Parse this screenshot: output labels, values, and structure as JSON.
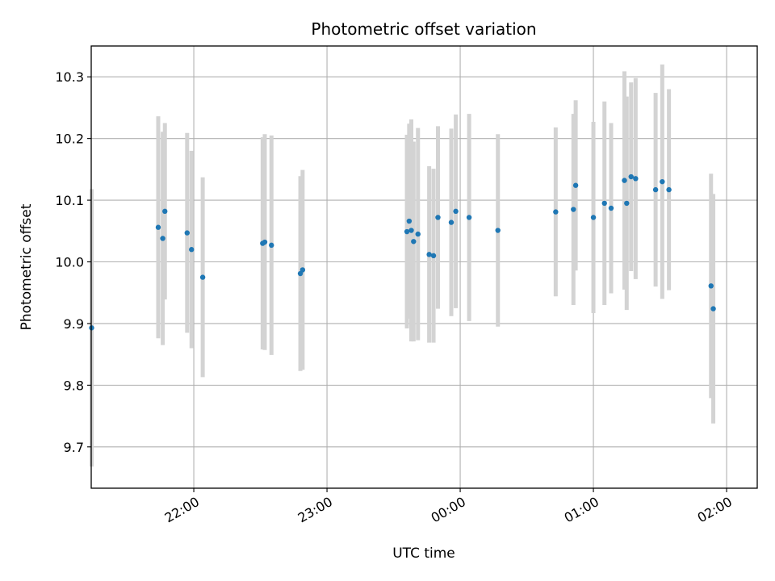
{
  "chart_data": {
    "type": "scatter",
    "title": "Photometric offset variation",
    "xlabel": "UTC time",
    "ylabel": "Photometric offset",
    "x_unit": "hours",
    "xlim": [
      21.23,
      26.23
    ],
    "ylim": [
      9.633,
      10.35
    ],
    "x_ticks": [
      {
        "value": 22,
        "label": "22:00"
      },
      {
        "value": 23,
        "label": "23:00"
      },
      {
        "value": 24,
        "label": "00:00"
      },
      {
        "value": 25,
        "label": "01:00"
      },
      {
        "value": 26,
        "label": "02:00"
      }
    ],
    "y_ticks": [
      {
        "value": 9.7,
        "label": "9.7"
      },
      {
        "value": 9.8,
        "label": "9.8"
      },
      {
        "value": 9.9,
        "label": "9.9"
      },
      {
        "value": 10.0,
        "label": "10.0"
      },
      {
        "value": 10.1,
        "label": "10.1"
      },
      {
        "value": 10.2,
        "label": "10.2"
      },
      {
        "value": 10.3,
        "label": "10.3"
      }
    ],
    "grid": true,
    "colors": {
      "point": "#1f77b4",
      "errorbar": "#d3d3d3",
      "grid": "#b0b0b0"
    },
    "points": [
      {
        "x": 21.233,
        "y": 9.893,
        "err": 0.225
      },
      {
        "x": 21.733,
        "y": 10.056,
        "err": 0.18
      },
      {
        "x": 21.767,
        "y": 10.038,
        "err": 0.173
      },
      {
        "x": 21.783,
        "y": 10.082,
        "err": 0.143
      },
      {
        "x": 21.95,
        "y": 10.047,
        "err": 0.162
      },
      {
        "x": 21.983,
        "y": 10.02,
        "err": 0.16
      },
      {
        "x": 22.067,
        "y": 9.975,
        "err": 0.162
      },
      {
        "x": 22.517,
        "y": 10.03,
        "err": 0.172
      },
      {
        "x": 22.533,
        "y": 10.032,
        "err": 0.175
      },
      {
        "x": 22.583,
        "y": 10.027,
        "err": 0.178
      },
      {
        "x": 22.8,
        "y": 9.981,
        "err": 0.158
      },
      {
        "x": 22.817,
        "y": 9.987,
        "err": 0.162
      },
      {
        "x": 23.6,
        "y": 10.049,
        "err": 0.157
      },
      {
        "x": 23.617,
        "y": 10.066,
        "err": 0.158
      },
      {
        "x": 23.633,
        "y": 10.051,
        "err": 0.18
      },
      {
        "x": 23.65,
        "y": 10.033,
        "err": 0.162
      },
      {
        "x": 23.683,
        "y": 10.045,
        "err": 0.172
      },
      {
        "x": 23.767,
        "y": 10.012,
        "err": 0.143
      },
      {
        "x": 23.8,
        "y": 10.01,
        "err": 0.141
      },
      {
        "x": 23.833,
        "y": 10.072,
        "err": 0.148
      },
      {
        "x": 23.933,
        "y": 10.064,
        "err": 0.152
      },
      {
        "x": 23.967,
        "y": 10.082,
        "err": 0.157
      },
      {
        "x": 24.067,
        "y": 10.072,
        "err": 0.168
      },
      {
        "x": 24.283,
        "y": 10.051,
        "err": 0.156
      },
      {
        "x": 24.717,
        "y": 10.081,
        "err": 0.137
      },
      {
        "x": 24.85,
        "y": 10.085,
        "err": 0.155
      },
      {
        "x": 24.867,
        "y": 10.124,
        "err": 0.138
      },
      {
        "x": 25.0,
        "y": 10.072,
        "err": 0.155
      },
      {
        "x": 25.083,
        "y": 10.095,
        "err": 0.165
      },
      {
        "x": 25.133,
        "y": 10.087,
        "err": 0.138
      },
      {
        "x": 25.233,
        "y": 10.132,
        "err": 0.177
      },
      {
        "x": 25.25,
        "y": 10.095,
        "err": 0.173
      },
      {
        "x": 25.283,
        "y": 10.138,
        "err": 0.153
      },
      {
        "x": 25.317,
        "y": 10.135,
        "err": 0.163
      },
      {
        "x": 25.467,
        "y": 10.117,
        "err": 0.157
      },
      {
        "x": 25.517,
        "y": 10.13,
        "err": 0.19
      },
      {
        "x": 25.567,
        "y": 10.117,
        "err": 0.163
      },
      {
        "x": 25.883,
        "y": 9.961,
        "err": 0.182
      },
      {
        "x": 25.9,
        "y": 9.924,
        "err": 0.186
      }
    ]
  }
}
